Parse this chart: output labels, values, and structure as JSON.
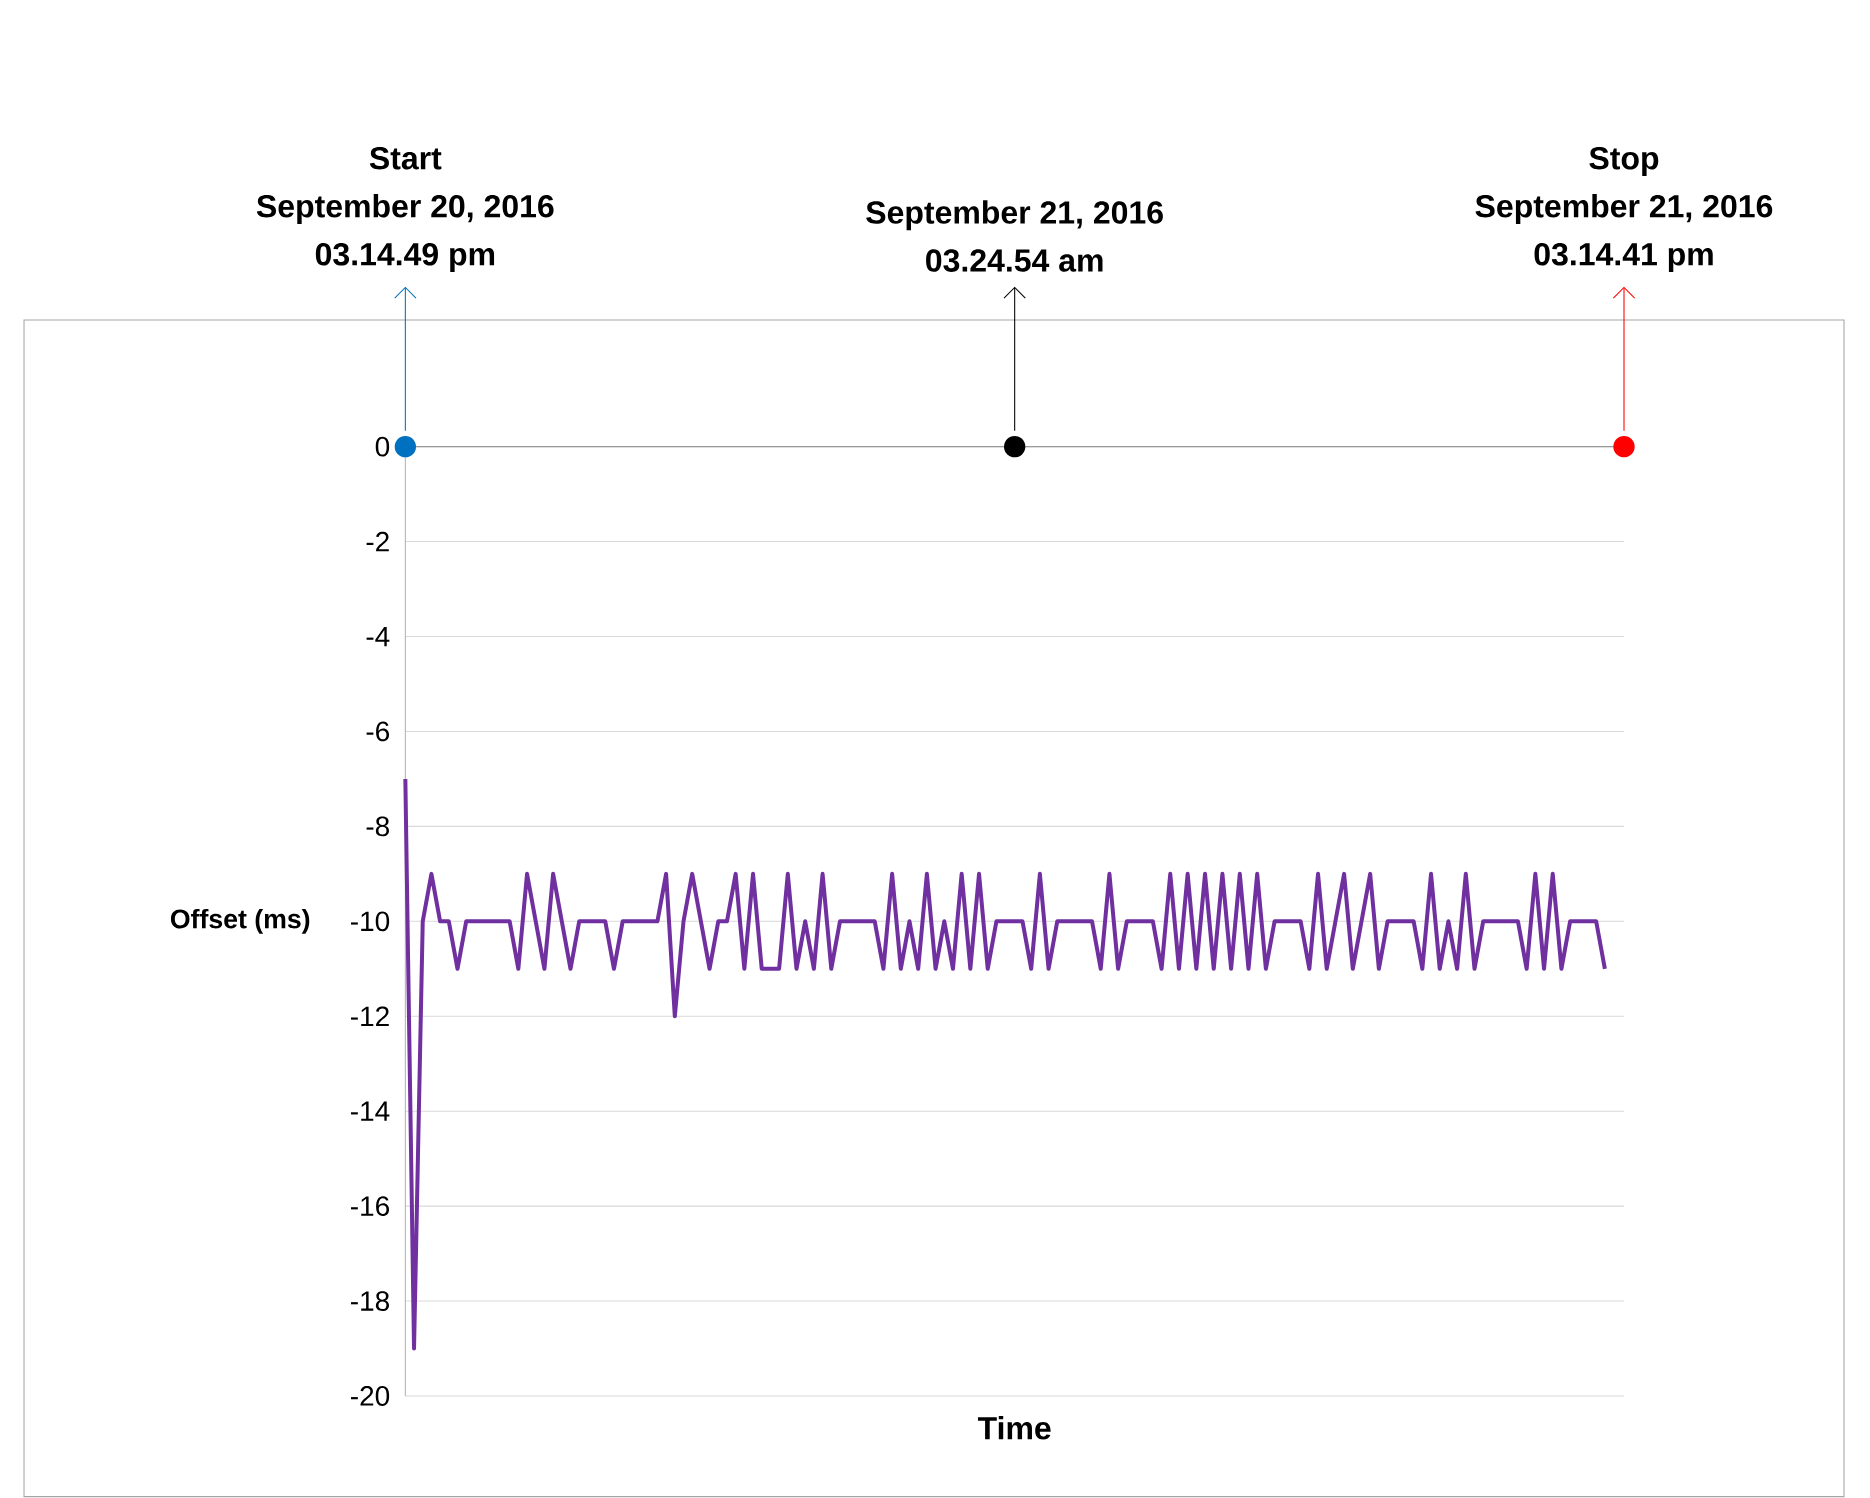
{
  "chart_data": {
    "type": "line",
    "xlabel": "Time",
    "ylabel": "Offset (ms)",
    "annotations": [
      "Start",
      "September 20, 2016",
      "03.14.49 pm",
      "September 21, 2016",
      "03.24.54 am",
      "Stop",
      "September 21, 2016",
      "03.14.41 pm"
    ],
    "categories": [
      null,
      null,
      null,
      null,
      null,
      null,
      null,
      null,
      null,
      null,
      null,
      null,
      null,
      null,
      null,
      null,
      null,
      null,
      null,
      null,
      null,
      null,
      null,
      null,
      null,
      null,
      null,
      null,
      null,
      null,
      null,
      null,
      null,
      null,
      null,
      null,
      null,
      null,
      null,
      null,
      null,
      null,
      null,
      null,
      null,
      null,
      null,
      null,
      null,
      null,
      null,
      null,
      null,
      null,
      null,
      null,
      null,
      null,
      null,
      null,
      null,
      null,
      null,
      null,
      null,
      null,
      null,
      null,
      null,
      null,
      null,
      null,
      null,
      null,
      null,
      null,
      null,
      null,
      null,
      null,
      null,
      null,
      null,
      null,
      null,
      null,
      null,
      null,
      null,
      null,
      null,
      null,
      null,
      null,
      null,
      null,
      null,
      null,
      null,
      null,
      null,
      null,
      null,
      null,
      null,
      null,
      null,
      null,
      null,
      null,
      null,
      null,
      null,
      null,
      null,
      null,
      null,
      null,
      null,
      null,
      null,
      null,
      null,
      null,
      null,
      null,
      null,
      null,
      null,
      null,
      null,
      null,
      null,
      null,
      null,
      null,
      null,
      null,
      null
    ],
    "series": [
      {
        "color": "#7030a0",
        "values": [
          -7,
          -19,
          -10,
          -9,
          -10,
          -10,
          -11,
          -10,
          -10,
          -10,
          -10,
          -10,
          -10,
          -11,
          -9,
          -10,
          -11,
          -9,
          -10,
          -11,
          -10,
          -10,
          -10,
          -10,
          -11,
          -10,
          -10,
          -10,
          -10,
          -10,
          -9,
          -12,
          -10,
          -9,
          -10,
          -11,
          -10,
          -10,
          -9,
          -11,
          -9,
          -11,
          -11,
          -11,
          -9,
          -11,
          -10,
          -11,
          -9,
          -11,
          -10,
          -10,
          -10,
          -10,
          -10,
          -11,
          -9,
          -11,
          -10,
          -11,
          -9,
          -11,
          -10,
          -11,
          -9,
          -11,
          -9,
          -11,
          -10,
          -10,
          -10,
          -10,
          -11,
          -9,
          -11,
          -10,
          -10,
          -10,
          -10,
          -10,
          -11,
          -9,
          -11,
          -10,
          -10,
          -10,
          -10,
          -11,
          -9,
          -11,
          -9,
          -11,
          -9,
          -11,
          -9,
          -11,
          -9,
          -11,
          -9,
          -11,
          -10,
          -10,
          -10,
          -10,
          -11,
          -9,
          -11,
          -10,
          -9,
          -11,
          -10,
          -9,
          -11,
          -10,
          -10,
          -10,
          -10,
          -11,
          -9,
          -11,
          -10,
          -11,
          -9,
          -11,
          -10,
          -10,
          -10,
          -10,
          -10,
          -11,
          -9,
          -11,
          -9,
          -11,
          -10,
          -10,
          -10,
          -10,
          -11
        ]
      }
    ],
    "ylim": [
      -20,
      0
    ],
    "yticks": [
      -20,
      -18,
      -16,
      -14,
      -12,
      -10,
      -8,
      -6,
      -4,
      -2,
      0
    ],
    "grid": "y",
    "marker": "none",
    "line_style": "solid"
  }
}
